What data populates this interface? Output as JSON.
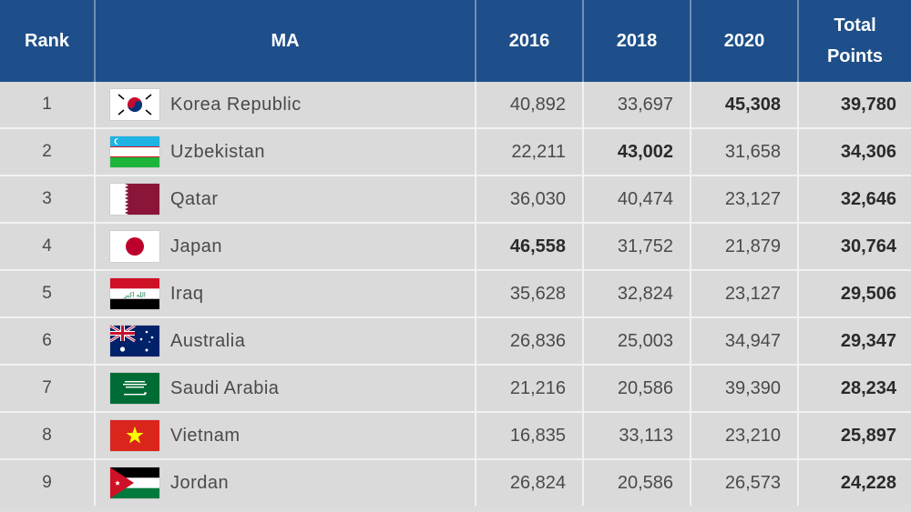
{
  "headers": {
    "rank": "Rank",
    "ma": "MA",
    "y2016": "2016",
    "y2018": "2018",
    "y2020": "2020",
    "total_line1": "Total",
    "total_line2": "Points"
  },
  "rows": [
    {
      "rank": "1",
      "country": "Korea Republic",
      "flag": "korea-flag-icon",
      "y2016": "40,892",
      "y2018": "33,697",
      "y2020": "45,308",
      "total": "39,780",
      "best": "y2020"
    },
    {
      "rank": "2",
      "country": "Uzbekistan",
      "flag": "uzbekistan-flag-icon",
      "y2016": "22,211",
      "y2018": "43,002",
      "y2020": "31,658",
      "total": "34,306",
      "best": "y2018"
    },
    {
      "rank": "3",
      "country": "Qatar",
      "flag": "qatar-flag-icon",
      "y2016": "36,030",
      "y2018": "40,474",
      "y2020": "23,127",
      "total": "32,646",
      "best": ""
    },
    {
      "rank": "4",
      "country": "Japan",
      "flag": "japan-flag-icon",
      "y2016": "46,558",
      "y2018": "31,752",
      "y2020": "21,879",
      "total": "30,764",
      "best": "y2016"
    },
    {
      "rank": "5",
      "country": "Iraq",
      "flag": "iraq-flag-icon",
      "y2016": "35,628",
      "y2018": "32,824",
      "y2020": "23,127",
      "total": "29,506",
      "best": ""
    },
    {
      "rank": "6",
      "country": "Australia",
      "flag": "australia-flag-icon",
      "y2016": "26,836",
      "y2018": "25,003",
      "y2020": "34,947",
      "total": "29,347",
      "best": ""
    },
    {
      "rank": "7",
      "country": "Saudi Arabia",
      "flag": "saudi-arabia-flag-icon",
      "y2016": "21,216",
      "y2018": "20,586",
      "y2020": "39,390",
      "total": "28,234",
      "best": ""
    },
    {
      "rank": "8",
      "country": "Vietnam",
      "flag": "vietnam-flag-icon",
      "y2016": "16,835",
      "y2018": "33,113",
      "y2020": "23,210",
      "total": "25,897",
      "best": ""
    },
    {
      "rank": "9",
      "country": "Jordan",
      "flag": "jordan-flag-icon",
      "y2016": "26,824",
      "y2018": "20,586",
      "y2020": "26,573",
      "total": "24,228",
      "best": ""
    }
  ],
  "colors": {
    "header_bg": "#1e4f8a",
    "row_bg": "#dadada"
  }
}
